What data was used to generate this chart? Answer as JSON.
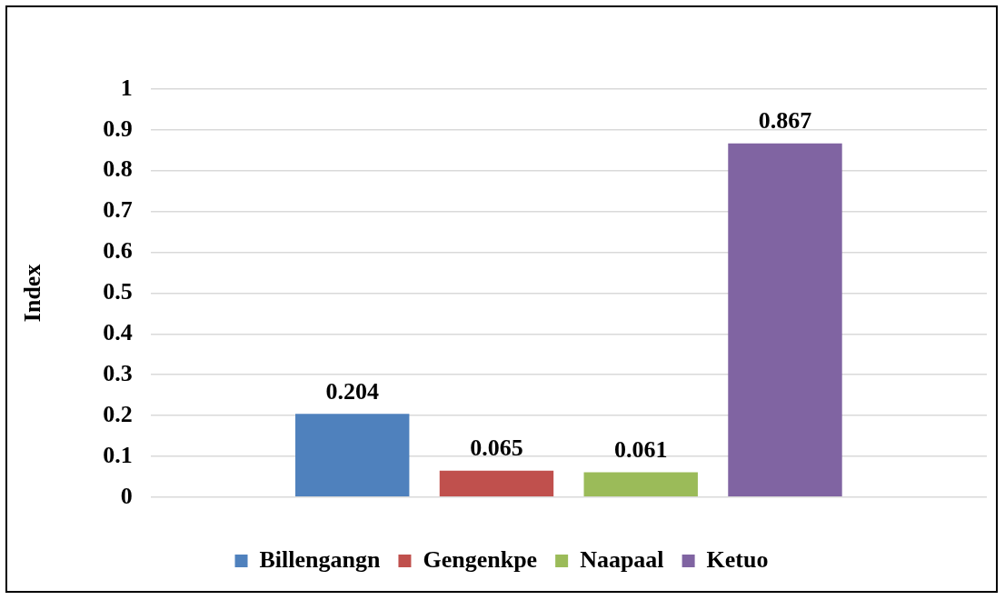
{
  "chart_data": {
    "type": "bar",
    "ylabel": "Index",
    "categories": [
      null
    ],
    "series": [
      {
        "name": "Billengangn",
        "color": "#4f81bd",
        "values": [
          0.204
        ]
      },
      {
        "name": "Gengenkpe",
        "color": "#c0504d",
        "values": [
          0.065
        ]
      },
      {
        "name": "Naapaal",
        "color": "#9bbb59",
        "values": [
          0.061
        ]
      },
      {
        "name": "Ketuo",
        "color": "#8064a2",
        "values": [
          0.867
        ]
      }
    ],
    "ylim": [
      0,
      1
    ],
    "yticks": [
      0,
      0.1,
      0.2,
      0.3,
      0.4,
      0.5,
      0.6,
      0.7,
      0.8,
      0.9,
      1
    ],
    "grid": "y",
    "legend": "bottom",
    "data_labels": true
  }
}
